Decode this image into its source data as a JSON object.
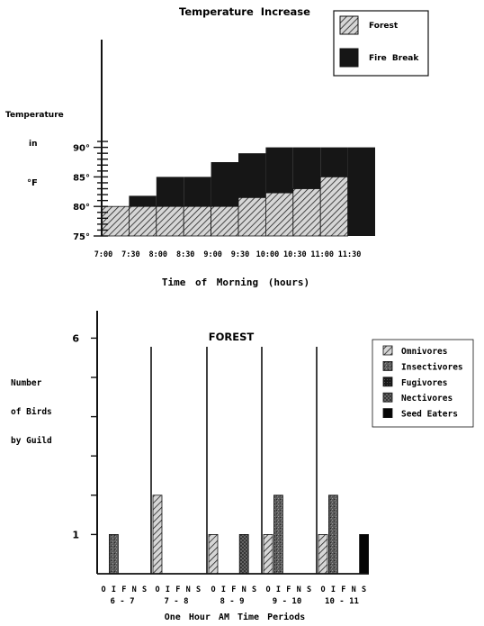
{
  "chart_data": [
    {
      "type": "bar",
      "title": "Temperature Increase",
      "xlabel": "Time of Morning (hours)",
      "ylabel_lines": [
        "Temperature",
        "in",
        "°F"
      ],
      "ylim": [
        75,
        93
      ],
      "y_ticks": [
        {
          "value": 75,
          "label": "75°"
        },
        {
          "value": 80,
          "label": "80°"
        },
        {
          "value": 85,
          "label": "85°"
        },
        {
          "value": 90,
          "label": "90°"
        }
      ],
      "categories": [
        "7:00",
        "7:30",
        "8:00",
        "8:30",
        "9:00",
        "9:30",
        "10:00",
        "10:30",
        "11:00",
        "11:30"
      ],
      "series": [
        {
          "name": "Forest",
          "values": [
            80,
            80,
            80,
            80,
            80,
            81.5,
            82.3,
            83,
            85,
            null
          ],
          "color": "#9a9a9a",
          "pattern": "hatch"
        },
        {
          "name": "Fire Break",
          "values": [
            80,
            81.8,
            85,
            85,
            87.5,
            89,
            90,
            90,
            90,
            90
          ],
          "color": "#161616",
          "pattern": "solid"
        }
      ],
      "legend_position": "top-right"
    },
    {
      "type": "bar",
      "title": "FOREST",
      "xlabel": "One Hour AM Time Periods",
      "ylabel_lines": [
        "Number",
        "of Birds",
        "by Guild"
      ],
      "ylim": [
        0,
        6.5
      ],
      "y_tick_labels": [
        {
          "value": 1,
          "label": "1"
        },
        {
          "value": 6,
          "label": "6"
        }
      ],
      "categories": [
        "6 - 7",
        "7 - 8",
        "8 - 9",
        "9 - 10",
        "10 - 11"
      ],
      "guild_letters": [
        "O",
        "I",
        "F",
        "N",
        "S"
      ],
      "series": [
        {
          "name": "Omnivores",
          "values": [
            0,
            2,
            1,
            1,
            1
          ],
          "color": "#8a8a8a",
          "pattern": "hatch"
        },
        {
          "name": "Insectivores",
          "values": [
            1,
            0,
            0,
            2,
            2
          ],
          "color": "#555555",
          "pattern": "grainy"
        },
        {
          "name": "Fugivores",
          "values": [
            0,
            0,
            0,
            0,
            0
          ],
          "color": "#2a2a2a",
          "pattern": "dense"
        },
        {
          "name": "Nectivores",
          "values": [
            0,
            0,
            1,
            0,
            0
          ],
          "color": "#3c3c3c",
          "pattern": "crosshatch"
        },
        {
          "name": "Seed Eaters",
          "values": [
            0,
            0,
            0,
            0,
            1
          ],
          "color": "#050505",
          "pattern": "solid"
        }
      ],
      "legend_position": "right"
    }
  ]
}
